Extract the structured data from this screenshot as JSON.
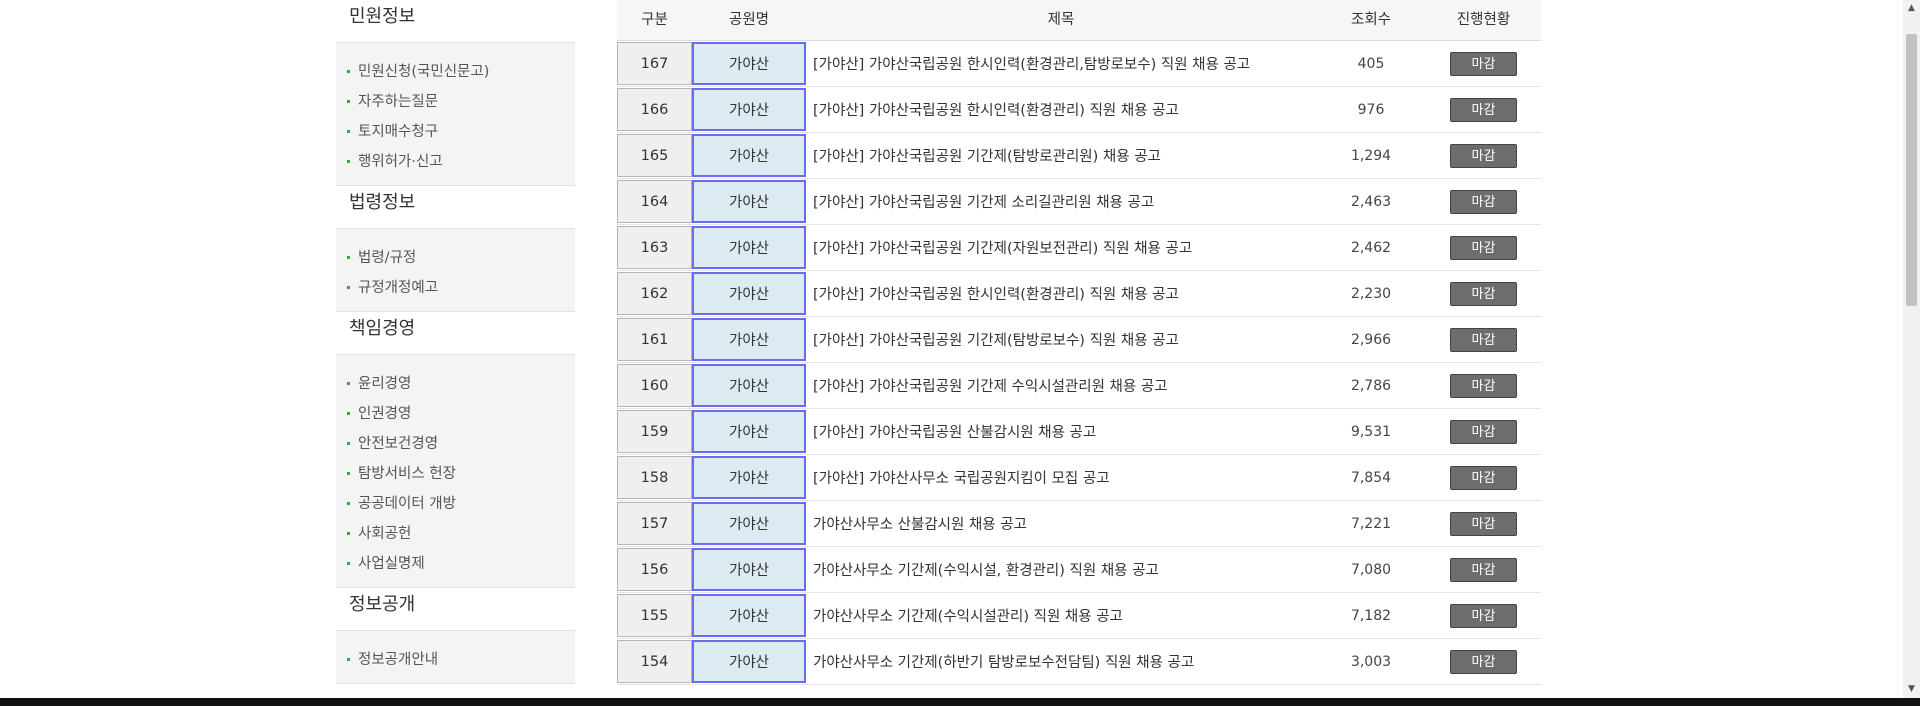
{
  "sidebar": {
    "sections": [
      {
        "title": "민원정보",
        "items": [
          "민원신청(국민신문고)",
          "자주하는질문",
          "토지매수청구",
          "행위허가·신고"
        ]
      },
      {
        "title": "법령정보",
        "items": [
          "법령/규정",
          "규정개정예고"
        ]
      },
      {
        "title": "책임경영",
        "items": [
          "윤리경영",
          "인권경영",
          "안전보건경영",
          "탐방서비스 헌장",
          "공공데이터 개방",
          "사회공헌",
          "사업실명제"
        ]
      },
      {
        "title": "정보공개",
        "items": [
          "정보공개안내"
        ]
      }
    ]
  },
  "table": {
    "headers": {
      "no": "구분",
      "park": "공원명",
      "title": "제목",
      "views": "조회수",
      "status": "진행현황"
    },
    "rows": [
      {
        "no": "167",
        "park": "가야산",
        "title": "[가야산] 가야산국립공원 한시인력(환경관리,탐방로보수) 직원 채용 공고",
        "views": "405",
        "status": "마감"
      },
      {
        "no": "166",
        "park": "가야산",
        "title": "[가야산] 가야산국립공원 한시인력(환경관리) 직원 채용 공고",
        "views": "976",
        "status": "마감"
      },
      {
        "no": "165",
        "park": "가야산",
        "title": "[가야산] 가야산국립공원 기간제(탐방로관리원) 채용 공고",
        "views": "1,294",
        "status": "마감"
      },
      {
        "no": "164",
        "park": "가야산",
        "title": "[가야산] 가야산국립공원 기간제 소리길관리원 채용 공고",
        "views": "2,463",
        "status": "마감"
      },
      {
        "no": "163",
        "park": "가야산",
        "title": "[가야산] 가야산국립공원 기간제(자원보전관리) 직원 채용 공고",
        "views": "2,462",
        "status": "마감"
      },
      {
        "no": "162",
        "park": "가야산",
        "title": "[가야산] 가야산국립공원 한시인력(환경관리) 직원 채용 공고",
        "views": "2,230",
        "status": "마감"
      },
      {
        "no": "161",
        "park": "가야산",
        "title": "[가야산] 가야산국립공원 기간제(탐방로보수) 직원 채용 공고",
        "views": "2,966",
        "status": "마감"
      },
      {
        "no": "160",
        "park": "가야산",
        "title": "[가야산] 가야산국립공원 기간제 수익시설관리원 채용 공고",
        "views": "2,786",
        "status": "마감"
      },
      {
        "no": "159",
        "park": "가야산",
        "title": "[가야산] 가야산국립공원 산불감시원 채용 공고",
        "views": "9,531",
        "status": "마감"
      },
      {
        "no": "158",
        "park": "가야산",
        "title": "[가야산] 가야산사무소 국립공원지킴이 모집 공고",
        "views": "7,854",
        "status": "마감"
      },
      {
        "no": "157",
        "park": "가야산",
        "title": "가야산사무소 산불감시원 채용 공고",
        "views": "7,221",
        "status": "마감"
      },
      {
        "no": "156",
        "park": "가야산",
        "title": "가야산사무소 기간제(수익시설, 환경관리) 직원 채용 공고",
        "views": "7,080",
        "status": "마감"
      },
      {
        "no": "155",
        "park": "가야산",
        "title": "가야산사무소 기간제(수익시설관리) 직원 채용 공고",
        "views": "7,182",
        "status": "마감"
      },
      {
        "no": "154",
        "park": "가야산",
        "title": "가야산사무소 기간제(하반기 탐방로보수전담팀) 직원 채용 공고",
        "views": "3,003",
        "status": "마감"
      }
    ]
  },
  "colors": {
    "bullet": "#3aa34a",
    "badge_bg": "#6d6d6d",
    "park_cell_bg": "#dcebf2",
    "park_cell_border": "#6b6bf0"
  }
}
